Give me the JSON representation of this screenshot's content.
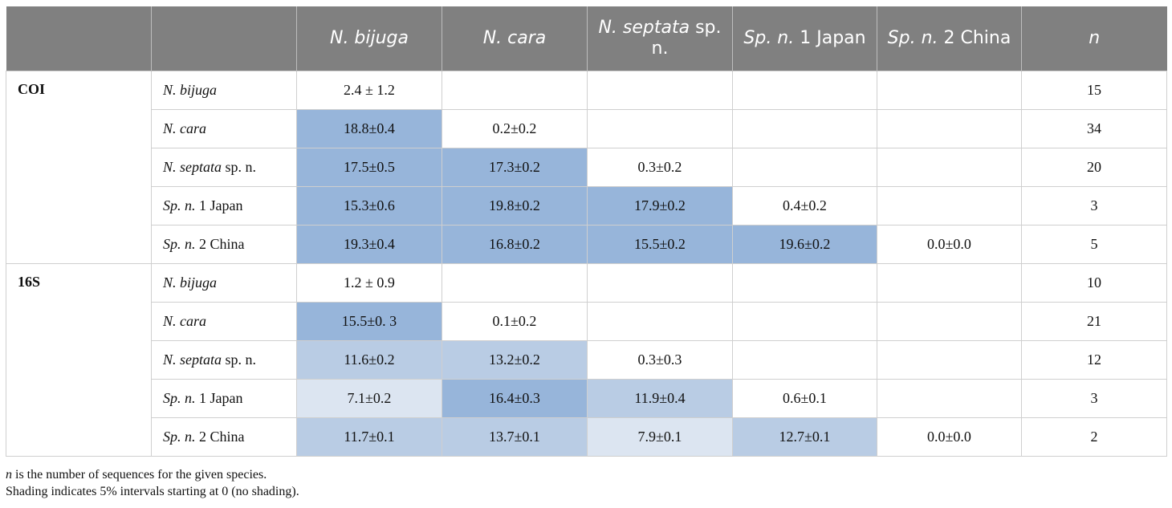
{
  "colors": {
    "header_bg": "#808080",
    "shade_1": "#dce5f1",
    "shade_2": "#b9cce4",
    "shade_3": "#97b5da",
    "shade_4": "#97b5da"
  },
  "header": [
    {
      "it": "N. bijuga",
      "up": ""
    },
    {
      "it": "N. cara",
      "up": ""
    },
    {
      "it": "N. septata",
      "up": " sp. n."
    },
    {
      "it": "Sp. n.",
      "up": " 1 Japan"
    },
    {
      "it": "Sp. n.",
      "up": " 2 China"
    },
    {
      "it": "n",
      "up": ""
    }
  ],
  "groups": [
    {
      "gene": "COI",
      "rows": [
        {
          "it": "N. bijuga",
          "up": "",
          "cells": [
            {
              "v": "2.4 ± 1.2",
              "s": 0
            }
          ],
          "n": "15"
        },
        {
          "it": "N. cara",
          "up": "",
          "cells": [
            {
              "v": "18.8±0.4",
              "s": 3
            },
            {
              "v": "0.2±0.2",
              "s": 0
            }
          ],
          "n": "34"
        },
        {
          "it": "N. septata",
          "up": " sp. n.",
          "cells": [
            {
              "v": "17.5±0.5",
              "s": 3
            },
            {
              "v": "17.3±0.2",
              "s": 3
            },
            {
              "v": "0.3±0.2",
              "s": 0
            }
          ],
          "n": "20"
        },
        {
          "it": "Sp. n.",
          "up": " 1 Japan",
          "cells": [
            {
              "v": "15.3±0.6",
              "s": 3
            },
            {
              "v": "19.8±0.2",
              "s": 3
            },
            {
              "v": "17.9±0.2",
              "s": 3
            },
            {
              "v": "0.4±0.2",
              "s": 0
            }
          ],
          "n": "3"
        },
        {
          "it": "Sp. n.",
          "up": " 2 China",
          "cells": [
            {
              "v": "19.3±0.4",
              "s": 3
            },
            {
              "v": "16.8±0.2",
              "s": 3
            },
            {
              "v": "15.5±0.2",
              "s": 3
            },
            {
              "v": "19.6±0.2",
              "s": 3
            },
            {
              "v": "0.0±0.0",
              "s": 0
            }
          ],
          "n": "5"
        }
      ]
    },
    {
      "gene": "16S",
      "rows": [
        {
          "it": "N. bijuga",
          "up": "",
          "cells": [
            {
              "v": "1.2 ± 0.9",
              "s": 0
            }
          ],
          "n": "10"
        },
        {
          "it": "N. cara",
          "up": "",
          "cells": [
            {
              "v": "15.5±0. 3",
              "s": 3
            },
            {
              "v": "0.1±0.2",
              "s": 0
            }
          ],
          "n": "21"
        },
        {
          "it": "N. septata",
          "up": " sp. n.",
          "cells": [
            {
              "v": "11.6±0.2",
              "s": 2
            },
            {
              "v": "13.2±0.2",
              "s": 2
            },
            {
              "v": "0.3±0.3",
              "s": 0
            }
          ],
          "n": "12"
        },
        {
          "it": "Sp. n.",
          "up": " 1 Japan",
          "cells": [
            {
              "v": "7.1±0.2",
              "s": 1
            },
            {
              "v": "16.4±0.3",
              "s": 3
            },
            {
              "v": "11.9±0.4",
              "s": 2
            },
            {
              "v": "0.6±0.1",
              "s": 0
            }
          ],
          "n": "3"
        },
        {
          "it": "Sp. n.",
          "up": " 2 China",
          "cells": [
            {
              "v": "11.7±0.1",
              "s": 2
            },
            {
              "v": "13.7±0.1",
              "s": 2
            },
            {
              "v": "7.9±0.1",
              "s": 1
            },
            {
              "v": "12.7±0.1",
              "s": 2
            },
            {
              "v": "0.0±0.0",
              "s": 0
            }
          ],
          "n": "2"
        }
      ]
    }
  ],
  "footnotes": {
    "note1_italic": "n",
    "note1_rest": " is the number of sequences for the given species.",
    "note2": "Shading indicates 5% intervals starting at 0 (no shading)."
  }
}
